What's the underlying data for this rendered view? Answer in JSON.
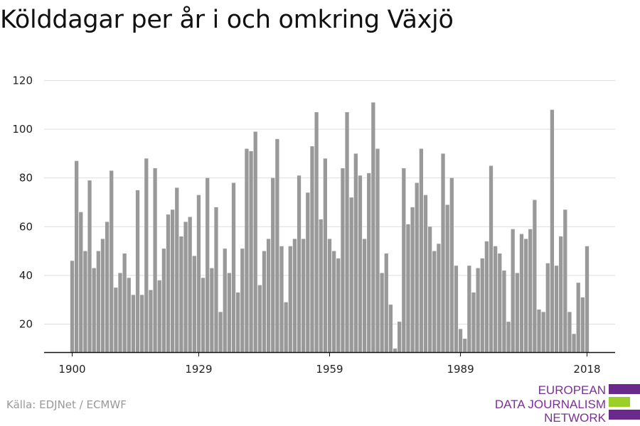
{
  "title": "Kölddagar per år i och omkring Växjö",
  "source": "Källa: EDJNet / ECMWF",
  "logo": {
    "lines": [
      "EUROPEAN",
      "DATA JOURNALISM",
      "NETWORK"
    ],
    "colors": {
      "purple": "#6a2a8c",
      "green": "#9ccf2a"
    }
  },
  "colors": {
    "bar": "#999999",
    "grid": "#dddddd",
    "axis": "#111111"
  },
  "chart_data": {
    "type": "bar",
    "title": "Kölddagar per år i och omkring Växjö",
    "xlabel": "",
    "ylabel": "",
    "x_ticks": [
      "1900",
      "1929",
      "1959",
      "1989",
      "2018"
    ],
    "y_ticks": [
      20,
      40,
      60,
      80,
      100,
      120
    ],
    "ylim": [
      8.5,
      121
    ],
    "x_start_year": 1900,
    "x_end_year": 2018,
    "grid": true,
    "legend": "none",
    "values": [
      46,
      87,
      66,
      50,
      79,
      43,
      50,
      55,
      62,
      83,
      35,
      41,
      49,
      39,
      32,
      75,
      32,
      88,
      34,
      84,
      38,
      51,
      65,
      67,
      76,
      56,
      62,
      64,
      48,
      73,
      39,
      80,
      43,
      68,
      25,
      51,
      41,
      78,
      33,
      51,
      92,
      91,
      99,
      36,
      50,
      55,
      80,
      96,
      52,
      29,
      52,
      55,
      81,
      55,
      74,
      93,
      107,
      63,
      88,
      55,
      50,
      47,
      84,
      107,
      72,
      90,
      81,
      55,
      82,
      111,
      92,
      41,
      49,
      28,
      10,
      21,
      84,
      61,
      68,
      78,
      92,
      73,
      60,
      50,
      53,
      90,
      69,
      80,
      44,
      18,
      14,
      44,
      33,
      43,
      47,
      54,
      85,
      52,
      49,
      42,
      21,
      59,
      41,
      57,
      55,
      59,
      71,
      26,
      25,
      45,
      108,
      44,
      56,
      67,
      25,
      16,
      37,
      31,
      52
    ]
  }
}
